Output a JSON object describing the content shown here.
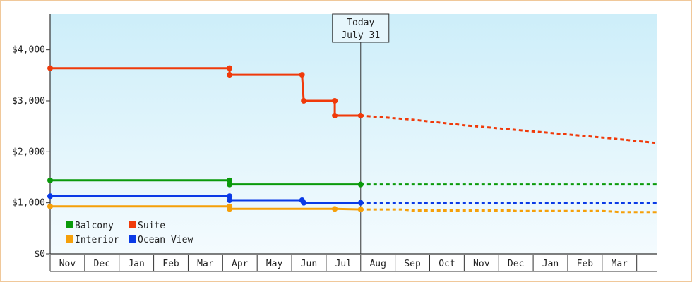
{
  "chart_data": {
    "type": "line",
    "title": "",
    "xlabel": "",
    "ylabel": "",
    "ylim": [
      0,
      4700
    ],
    "yticks": [
      0,
      1000,
      2000,
      3000,
      4000
    ],
    "ytick_labels": [
      "$0",
      "$1,000",
      "$2,000",
      "$3,000",
      "$4,000"
    ],
    "xlim": [
      0,
      17.6
    ],
    "xtick_labels": [
      "Nov",
      "Dec",
      "Jan",
      "Feb",
      "Mar",
      "Apr",
      "May",
      "Jun",
      "Jul",
      "Aug",
      "Sep",
      "Oct",
      "Nov",
      "Dec",
      "Jan",
      "Feb",
      "Mar"
    ],
    "today_marker": {
      "line1": "Today",
      "line2": "July 31",
      "x": 9.0
    },
    "grid": false,
    "legend_placement": "bottom-left",
    "background_gradient": [
      "#cdeef9",
      "#f4fbfe"
    ],
    "series": [
      {
        "name": "Balcony",
        "color": "#0a9a0a",
        "actual": [
          [
            0,
            1440
          ],
          [
            5.2,
            1440
          ],
          [
            5.2,
            1360
          ],
          [
            9.0,
            1360
          ]
        ],
        "markers": [
          [
            0,
            1440
          ],
          [
            5.2,
            1440
          ],
          [
            5.2,
            1360
          ],
          [
            9.0,
            1360
          ]
        ],
        "forecast": [
          [
            9.0,
            1360
          ],
          [
            17.6,
            1360
          ]
        ]
      },
      {
        "name": "Suite",
        "color": "#f03a0a",
        "actual": [
          [
            0,
            3640
          ],
          [
            5.2,
            3640
          ],
          [
            5.2,
            3510
          ],
          [
            7.3,
            3510
          ],
          [
            7.35,
            3000
          ],
          [
            8.25,
            3000
          ],
          [
            8.25,
            2710
          ],
          [
            9.0,
            2710
          ]
        ],
        "markers": [
          [
            0,
            3640
          ],
          [
            5.2,
            3640
          ],
          [
            5.2,
            3510
          ],
          [
            7.3,
            3510
          ],
          [
            7.35,
            3000
          ],
          [
            8.25,
            3000
          ],
          [
            8.25,
            2710
          ],
          [
            9.0,
            2710
          ]
        ],
        "forecast": [
          [
            9.0,
            2710
          ],
          [
            10.5,
            2630
          ],
          [
            12.0,
            2520
          ],
          [
            13.5,
            2430
          ],
          [
            15.0,
            2340
          ],
          [
            16.3,
            2260
          ],
          [
            17.6,
            2170
          ]
        ]
      },
      {
        "name": "Interior",
        "color": "#f5a00a",
        "actual": [
          [
            0,
            930
          ],
          [
            5.2,
            930
          ],
          [
            5.2,
            880
          ],
          [
            8.25,
            880
          ],
          [
            9.0,
            870
          ]
        ],
        "markers": [
          [
            0,
            930
          ],
          [
            5.2,
            930
          ],
          [
            5.2,
            880
          ],
          [
            8.25,
            880
          ],
          [
            9.0,
            870
          ]
        ],
        "forecast": [
          [
            9.0,
            870
          ],
          [
            10.2,
            870
          ],
          [
            10.5,
            850
          ],
          [
            12.0,
            850
          ],
          [
            13.3,
            850
          ],
          [
            13.5,
            840
          ],
          [
            16.0,
            840
          ],
          [
            16.5,
            820
          ],
          [
            17.6,
            820
          ]
        ]
      },
      {
        "name": "Ocean View",
        "color": "#0a3ae6",
        "actual": [
          [
            0,
            1130
          ],
          [
            5.2,
            1130
          ],
          [
            5.2,
            1050
          ],
          [
            7.3,
            1050
          ],
          [
            7.35,
            1000
          ],
          [
            9.0,
            1000
          ]
        ],
        "markers": [
          [
            0,
            1130
          ],
          [
            5.2,
            1130
          ],
          [
            5.2,
            1050
          ],
          [
            7.3,
            1050
          ],
          [
            7.35,
            1000
          ],
          [
            9.0,
            1000
          ]
        ],
        "forecast": [
          [
            9.0,
            1000
          ],
          [
            17.6,
            1000
          ]
        ]
      }
    ]
  }
}
